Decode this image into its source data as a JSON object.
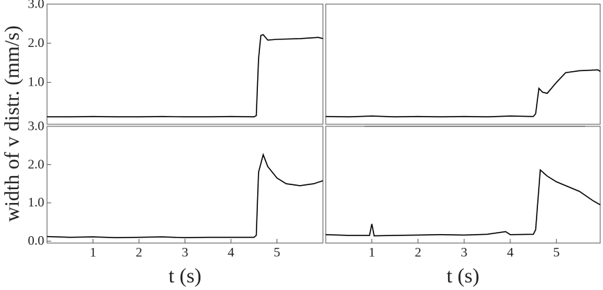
{
  "chart_data": [
    {
      "type": "line",
      "ylabel": "width of v distr. (mm/s)",
      "xlim": [
        0,
        6
      ],
      "ylim": [
        -0.07,
        3.0
      ],
      "yticks": [
        {
          "value": 1,
          "label": "1.0"
        },
        {
          "value": 2,
          "label": "2.0"
        },
        {
          "value": 3,
          "label": "3.0"
        }
      ],
      "x": [
        0,
        0.5,
        1,
        1.5,
        2,
        2.5,
        3,
        3.5,
        4,
        4.5,
        4.55,
        4.6,
        4.65,
        4.7,
        4.8,
        5,
        5.5,
        5.9,
        6.0
      ],
      "series": [
        {
          "color": "#000000",
          "values": [
            0.12,
            0.12,
            0.13,
            0.12,
            0.12,
            0.13,
            0.12,
            0.12,
            0.13,
            0.12,
            0.15,
            1.6,
            2.2,
            2.22,
            2.08,
            2.1,
            2.12,
            2.15,
            2.12
          ]
        }
      ]
    },
    {
      "type": "line",
      "xlim": [
        0,
        5.95
      ],
      "ylim": [
        -0.07,
        3.0
      ],
      "x": [
        0,
        0.5,
        1,
        1.5,
        2,
        2.5,
        3,
        3.5,
        4,
        4.5,
        4.55,
        4.62,
        4.7,
        4.8,
        5.0,
        5.2,
        5.5,
        5.9,
        5.95
      ],
      "series": [
        {
          "color": "#000000",
          "values": [
            0.13,
            0.12,
            0.14,
            0.12,
            0.13,
            0.12,
            0.13,
            0.12,
            0.14,
            0.13,
            0.2,
            0.85,
            0.75,
            0.72,
            1.0,
            1.25,
            1.3,
            1.32,
            1.28
          ]
        }
      ]
    },
    {
      "type": "line",
      "xlabel": "t (s)",
      "xlim": [
        0,
        6
      ],
      "ylim": [
        -0.05,
        3.0
      ],
      "xticks": [
        1,
        2,
        3,
        4,
        5
      ],
      "yticks": [
        {
          "value": 0,
          "label": "0.0"
        },
        {
          "value": 1,
          "label": "1.0"
        },
        {
          "value": 2,
          "label": "2.0"
        },
        {
          "value": 3,
          "label": "3.0"
        }
      ],
      "x": [
        0,
        0.5,
        1,
        1.5,
        2,
        2.5,
        3,
        3.5,
        4,
        4.5,
        4.55,
        4.6,
        4.7,
        4.8,
        5.0,
        5.2,
        5.5,
        5.8,
        6.0
      ],
      "series": [
        {
          "color": "#000000",
          "values": [
            0.12,
            0.1,
            0.11,
            0.09,
            0.1,
            0.11,
            0.09,
            0.1,
            0.1,
            0.1,
            0.15,
            1.8,
            2.26,
            1.95,
            1.65,
            1.5,
            1.45,
            1.5,
            1.58
          ]
        }
      ]
    },
    {
      "type": "line",
      "xlabel": "t (s)",
      "xlim": [
        0,
        5.95
      ],
      "ylim": [
        -0.05,
        3.0
      ],
      "xticks": [
        1,
        2,
        3,
        4,
        5
      ],
      "x": [
        0,
        0.5,
        0.95,
        1.0,
        1.05,
        1.5,
        2,
        2.5,
        3,
        3.5,
        3.9,
        4.0,
        4.5,
        4.55,
        4.65,
        4.8,
        5.0,
        5.5,
        5.8,
        5.95
      ],
      "series": [
        {
          "color": "#000000",
          "values": [
            0.17,
            0.15,
            0.15,
            0.45,
            0.14,
            0.15,
            0.16,
            0.17,
            0.16,
            0.18,
            0.25,
            0.17,
            0.18,
            0.3,
            1.86,
            1.7,
            1.55,
            1.3,
            1.05,
            0.95
          ]
        }
      ]
    }
  ]
}
